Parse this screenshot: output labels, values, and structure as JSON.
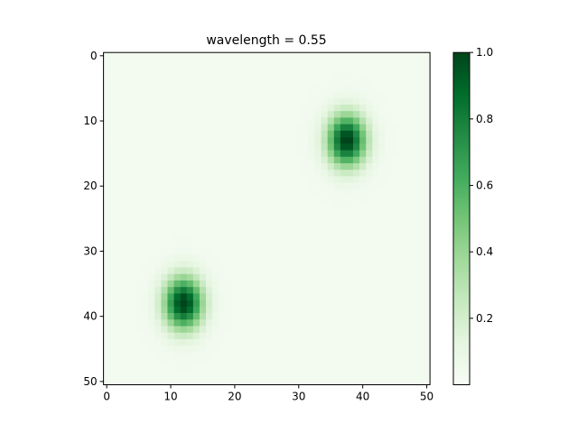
{
  "chart_data": {
    "type": "heatmap",
    "title": "wavelength = 0.55",
    "xlabel": "",
    "ylabel": "",
    "grid_size": [
      51,
      51
    ],
    "xlim": [
      -0.5,
      50.5
    ],
    "ylim": [
      50.5,
      -0.5
    ],
    "y_inverted": true,
    "x_ticks": [
      0,
      10,
      20,
      30,
      40,
      50
    ],
    "y_ticks": [
      0,
      10,
      20,
      30,
      40,
      50
    ],
    "colormap": "Greens",
    "color_range": [
      0.0,
      1.0
    ],
    "colorbar_ticks": [
      0.2,
      0.4,
      0.6,
      0.8,
      1.0
    ],
    "colorbar_tick_labels": [
      "0.2",
      "0.4",
      "0.6",
      "0.8",
      "1.0"
    ],
    "peaks": [
      {
        "x": 37.5,
        "y": 13,
        "value": 1.0
      },
      {
        "x": 12,
        "y": 38,
        "value": 1.0
      }
    ],
    "background_value": 0.03,
    "grid": false,
    "legend": "none"
  },
  "colors": {
    "cmap_low": "#f7fcf5",
    "cmap_high": "#00441b",
    "axes_edge": "#000000",
    "background": "#ffffff"
  }
}
